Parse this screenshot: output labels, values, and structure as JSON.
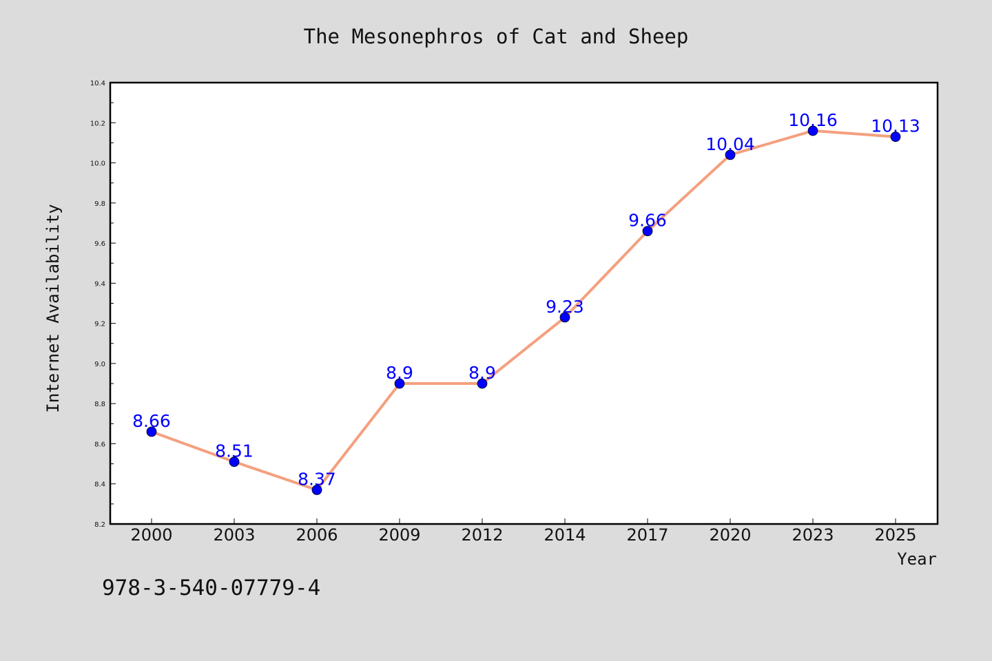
{
  "chart_data": {
    "type": "line",
    "title": "The Mesonephros of Cat and Sheep",
    "xlabel": "Year",
    "ylabel": "Internet Availability",
    "categories": [
      "2000",
      "2003",
      "2006",
      "2009",
      "2012",
      "2014",
      "2017",
      "2020",
      "2023",
      "2025"
    ],
    "series": [
      {
        "values": [
          8.66,
          8.51,
          8.37,
          8.9,
          8.9,
          9.23,
          9.66,
          10.04,
          10.16,
          10.13
        ],
        "data_labels": [
          "8.66",
          "8.51",
          "8.37",
          "8.9",
          "8.9",
          "9.23",
          "9.66",
          "10.04",
          "10.16",
          "10.13"
        ],
        "line_color": "#f4a07e",
        "marker_color": "#0000ff"
      }
    ],
    "ylim": [
      8.2,
      10.4
    ],
    "yticks": [
      "8.2",
      "8.4",
      "8.6",
      "8.8",
      "9.0",
      "9.2",
      "9.4",
      "9.6",
      "9.8",
      "10.0",
      "10.2",
      "10.4"
    ],
    "grid": false,
    "legend": "none"
  },
  "footer_text": "978-3-540-07779-4",
  "colors": {
    "background": "#dcdcdc",
    "plot_area": "#ffffff",
    "line": "#f4a07e",
    "marker": "#0000ff",
    "data_label": "#0000ff"
  }
}
